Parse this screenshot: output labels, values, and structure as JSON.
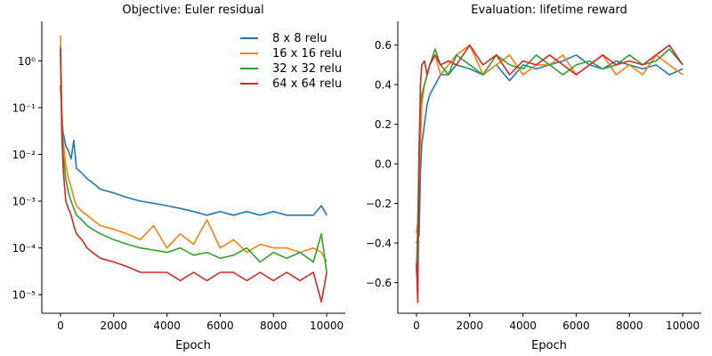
{
  "chart_data": [
    {
      "type": "line",
      "title": "Objective: Euler residual",
      "xlabel": "Epoch",
      "ylabel": "",
      "xlim": [
        -700,
        10700
      ],
      "ylim": [
        4e-06,
        7
      ],
      "yscale": "log",
      "xticks": [
        0,
        2000,
        4000,
        6000,
        8000,
        10000
      ],
      "xtick_labels": [
        "0",
        "2000",
        "4000",
        "6000",
        "8000",
        "10000"
      ],
      "yticks": [
        1e-05,
        0.0001,
        0.001,
        0.01,
        0.1,
        1
      ],
      "ytick_labels": [
        "10⁻⁵",
        "10⁻⁴",
        "10⁻³",
        "10⁻²",
        "10⁻¹",
        "10⁰"
      ],
      "grid": false,
      "legend": "top-right",
      "series": [
        {
          "name": "8 x 8 relu",
          "color": "#1f77b4",
          "x": [
            0,
            50,
            100,
            200,
            300,
            400,
            500,
            600,
            800,
            1000,
            1200,
            1500,
            2000,
            2500,
            3000,
            3500,
            4000,
            4500,
            5000,
            5500,
            6000,
            6500,
            7000,
            7500,
            8000,
            8500,
            9000,
            9500,
            9800,
            10000
          ],
          "y": [
            0.3,
            0.08,
            0.03,
            0.015,
            0.012,
            0.008,
            0.02,
            0.005,
            0.004,
            0.003,
            0.0025,
            0.0018,
            0.0015,
            0.0012,
            0.001,
            0.0009,
            0.0008,
            0.0007,
            0.0006,
            0.0005,
            0.0006,
            0.0005,
            0.0006,
            0.0005,
            0.0006,
            0.0005,
            0.0005,
            0.0005,
            0.0008,
            0.0005
          ]
        },
        {
          "name": "16 x 16 relu",
          "color": "#ff7f0e",
          "x": [
            0,
            50,
            100,
            200,
            300,
            400,
            500,
            600,
            800,
            1000,
            1200,
            1500,
            2000,
            2500,
            3000,
            3500,
            4000,
            4500,
            5000,
            5500,
            6000,
            6500,
            7000,
            7500,
            8000,
            8500,
            9000,
            9500,
            9800,
            10000
          ],
          "y": [
            3.5,
            0.1,
            0.02,
            0.006,
            0.003,
            0.002,
            0.0012,
            0.0008,
            0.0006,
            0.0005,
            0.0004,
            0.0003,
            0.00025,
            0.0002,
            0.00015,
            0.0003,
            0.0001,
            0.0002,
            0.00012,
            0.0004,
            0.0001,
            0.00015,
            8e-05,
            0.00012,
            0.0001,
            0.0001,
            8e-05,
            0.0001,
            8e-05,
            5e-05
          ]
        },
        {
          "name": "32 x 32 relu",
          "color": "#2ca02c",
          "x": [
            0,
            50,
            100,
            200,
            300,
            400,
            500,
            600,
            800,
            1000,
            1200,
            1500,
            2000,
            2500,
            3000,
            3500,
            4000,
            4500,
            5000,
            5500,
            6000,
            6500,
            7000,
            7500,
            8000,
            8500,
            9000,
            9500,
            9800,
            10000
          ],
          "y": [
            2.0,
            0.06,
            0.01,
            0.003,
            0.0015,
            0.001,
            0.0007,
            0.0005,
            0.0004,
            0.0003,
            0.00025,
            0.0002,
            0.00015,
            0.00012,
            0.0001,
            9e-05,
            8e-05,
            0.0001,
            7e-05,
            8e-05,
            6e-05,
            7e-05,
            0.0001,
            5e-05,
            8e-05,
            6e-05,
            8e-05,
            5e-05,
            0.0002,
            3e-05
          ]
        },
        {
          "name": "64 x 64 relu",
          "color": "#d62728",
          "x": [
            0,
            50,
            100,
            200,
            300,
            400,
            500,
            600,
            800,
            1000,
            1200,
            1500,
            2000,
            2500,
            3000,
            3500,
            4000,
            4500,
            5000,
            5500,
            6000,
            6500,
            7000,
            7500,
            8000,
            8500,
            9000,
            9500,
            9800,
            10000
          ],
          "y": [
            1.8,
            0.03,
            0.005,
            0.001,
            0.0007,
            0.0005,
            0.0003,
            0.0002,
            0.00015,
            0.0001,
            8e-05,
            6e-05,
            5e-05,
            4e-05,
            3e-05,
            3e-05,
            3e-05,
            2e-05,
            3e-05,
            2e-05,
            3e-05,
            3e-05,
            2e-05,
            3e-05,
            2e-05,
            3e-05,
            2e-05,
            3e-05,
            7e-06,
            3e-05
          ]
        }
      ]
    },
    {
      "type": "line",
      "title": "Evaluation: lifetime reward",
      "xlabel": "Epoch",
      "ylabel": "",
      "xlim": [
        -700,
        10700
      ],
      "ylim": [
        -0.755,
        0.72
      ],
      "yscale": "linear",
      "xticks": [
        0,
        2000,
        4000,
        6000,
        8000,
        10000
      ],
      "xtick_labels": [
        "0",
        "2000",
        "4000",
        "6000",
        "8000",
        "10000"
      ],
      "yticks": [
        -0.6,
        -0.4,
        -0.2,
        0.0,
        0.2,
        0.4,
        0.6
      ],
      "ytick_labels": [
        "−0.6",
        "−0.4",
        "−0.2",
        "0.0",
        "0.2",
        "0.4",
        "0.6"
      ],
      "grid": false,
      "legend": "none",
      "series": [
        {
          "name": "8 x 8 relu",
          "color": "#1f77b4",
          "x": [
            0,
            50,
            100,
            150,
            200,
            300,
            400,
            500,
            700,
            900,
            1200,
            1500,
            2000,
            2500,
            3000,
            3500,
            4000,
            4500,
            5000,
            5500,
            6000,
            6500,
            7000,
            7500,
            8000,
            8500,
            9000,
            9500,
            10000
          ],
          "y": [
            -0.4,
            -0.38,
            -0.36,
            -0.05,
            0.1,
            0.2,
            0.3,
            0.35,
            0.4,
            0.45,
            0.45,
            0.5,
            0.48,
            0.45,
            0.5,
            0.42,
            0.5,
            0.48,
            0.5,
            0.52,
            0.55,
            0.5,
            0.48,
            0.52,
            0.5,
            0.48,
            0.5,
            0.45,
            0.48
          ]
        },
        {
          "name": "16 x 16 relu",
          "color": "#ff7f0e",
          "x": [
            0,
            50,
            100,
            150,
            200,
            300,
            400,
            500,
            700,
            900,
            1200,
            1500,
            2000,
            2500,
            3000,
            3500,
            4000,
            4500,
            5000,
            5500,
            6000,
            6500,
            7000,
            7500,
            8000,
            8500,
            9000,
            9500,
            10000
          ],
          "y": [
            -0.35,
            -0.3,
            -0.1,
            0.1,
            0.3,
            0.4,
            0.45,
            0.5,
            0.55,
            0.45,
            0.5,
            0.55,
            0.6,
            0.45,
            0.5,
            0.55,
            0.45,
            0.5,
            0.5,
            0.55,
            0.45,
            0.5,
            0.55,
            0.45,
            0.5,
            0.45,
            0.55,
            0.5,
            0.45
          ]
        },
        {
          "name": "32 x 32 relu",
          "color": "#2ca02c",
          "x": [
            0,
            50,
            100,
            150,
            200,
            300,
            400,
            500,
            700,
            900,
            1200,
            1500,
            2000,
            2500,
            3000,
            3500,
            4000,
            4500,
            5000,
            5500,
            6000,
            6500,
            7000,
            7500,
            8000,
            8500,
            9000,
            9500,
            10000
          ],
          "y": [
            -0.55,
            -0.3,
            0.1,
            0.3,
            0.35,
            0.4,
            0.45,
            0.5,
            0.58,
            0.5,
            0.45,
            0.55,
            0.5,
            0.45,
            0.55,
            0.5,
            0.48,
            0.55,
            0.5,
            0.45,
            0.5,
            0.52,
            0.48,
            0.5,
            0.55,
            0.5,
            0.52,
            0.58,
            0.5
          ]
        },
        {
          "name": "64 x 64 relu",
          "color": "#d62728",
          "x": [
            0,
            50,
            100,
            150,
            200,
            300,
            400,
            500,
            700,
            900,
            1200,
            1500,
            2000,
            2500,
            3000,
            3500,
            4000,
            4500,
            5000,
            5500,
            6000,
            6500,
            7000,
            7500,
            8000,
            8500,
            9000,
            9500,
            10000
          ],
          "y": [
            -0.5,
            -0.7,
            0.0,
            0.4,
            0.5,
            0.52,
            0.45,
            0.5,
            0.55,
            0.5,
            0.52,
            0.5,
            0.6,
            0.5,
            0.55,
            0.45,
            0.52,
            0.5,
            0.55,
            0.5,
            0.45,
            0.5,
            0.55,
            0.5,
            0.52,
            0.5,
            0.55,
            0.6,
            0.5
          ]
        }
      ]
    }
  ]
}
